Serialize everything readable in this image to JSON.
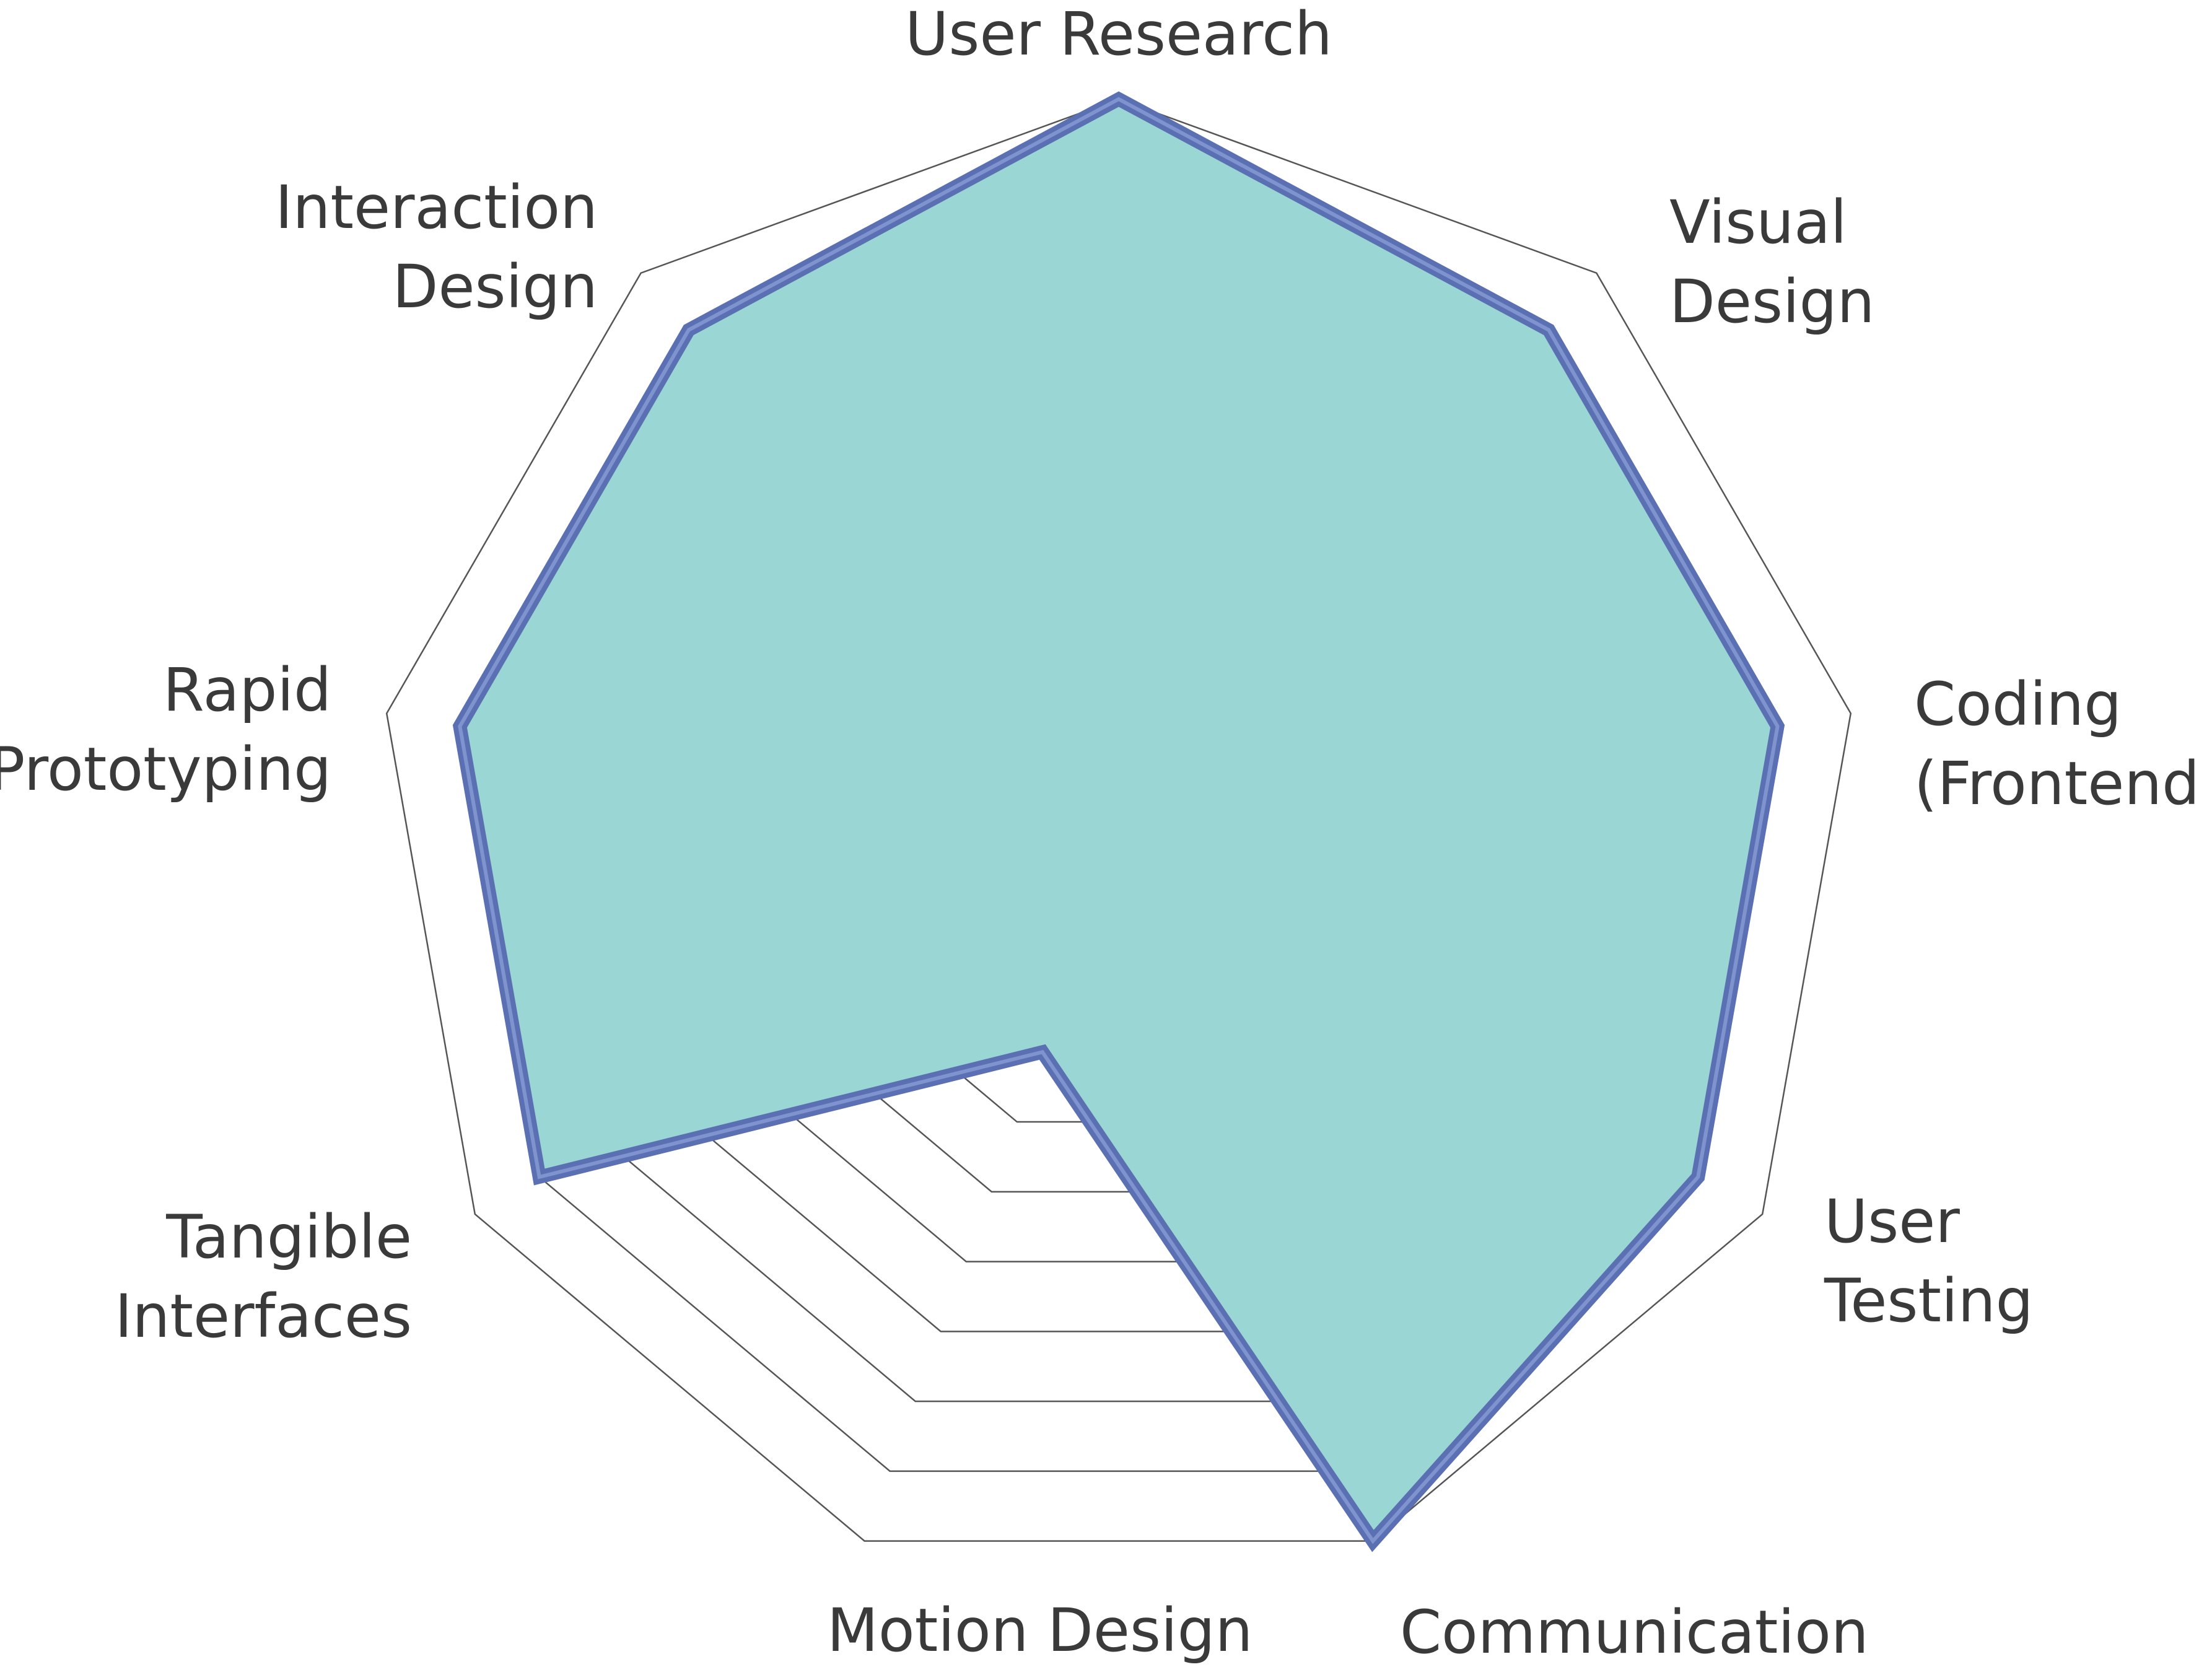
{
  "chart_data": {
    "type": "radar",
    "axes": [
      [
        "User Research"
      ],
      [
        "Visual",
        "Design"
      ],
      [
        "Coding",
        "(Frontend)"
      ],
      [
        "User",
        "Testing"
      ],
      [
        "Communication"
      ],
      [
        "Motion Design"
      ],
      [
        "Tangible",
        "Interfaces"
      ],
      [
        "Rapid",
        "Prototyping"
      ],
      [
        "Interaction",
        "Design"
      ]
    ],
    "values": [
      10,
      9,
      9,
      9,
      10,
      3,
      9,
      9,
      9
    ],
    "scale_max": 10,
    "rings": 10,
    "fill_color": "#9ad6d4",
    "line_color": "#5b6fb3",
    "grid_color": "#555555",
    "legend": false
  }
}
